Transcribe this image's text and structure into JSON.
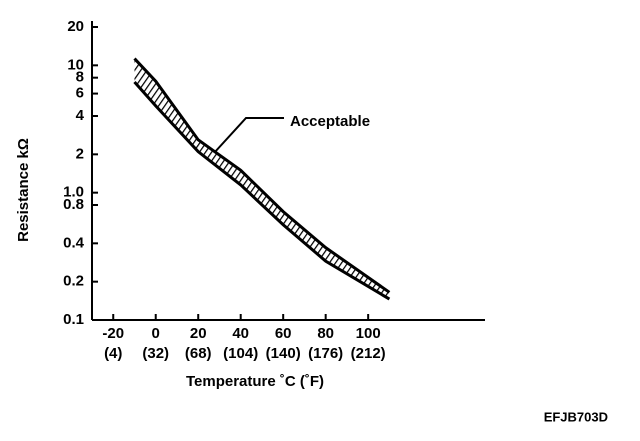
{
  "chart_data": {
    "type": "band",
    "x_label": "Temperature ˚C (˚F)",
    "y_label": "Resistance kΩ",
    "annotation": "Acceptable",
    "figure_code": "EFJB703D",
    "x": [
      -10,
      0,
      20,
      40,
      60,
      80,
      110
    ],
    "series": [
      {
        "name": "upper",
        "color": "#000000",
        "values": [
          11.3,
          7.5,
          2.6,
          1.5,
          0.71,
          0.37,
          0.165
        ]
      },
      {
        "name": "lower",
        "color": "#000000",
        "values": [
          7.4,
          4.8,
          2.1,
          1.15,
          0.56,
          0.29,
          0.146
        ]
      }
    ],
    "xlim": [
      -30,
      155
    ],
    "xticks": [
      -20,
      0,
      20,
      40,
      60,
      80,
      100
    ],
    "xtick_secondary_labels": [
      "(4)",
      "(32)",
      "(68)",
      "(104)",
      "(140)",
      "(176)",
      "(212)"
    ],
    "ylim": [
      0.1,
      20
    ],
    "log_y": true,
    "yticks": [
      0.1,
      0.2,
      0.4,
      0.8,
      {
        "value": 1,
        "label": "1.0"
      },
      2,
      4,
      6,
      8,
      10,
      20
    ]
  }
}
